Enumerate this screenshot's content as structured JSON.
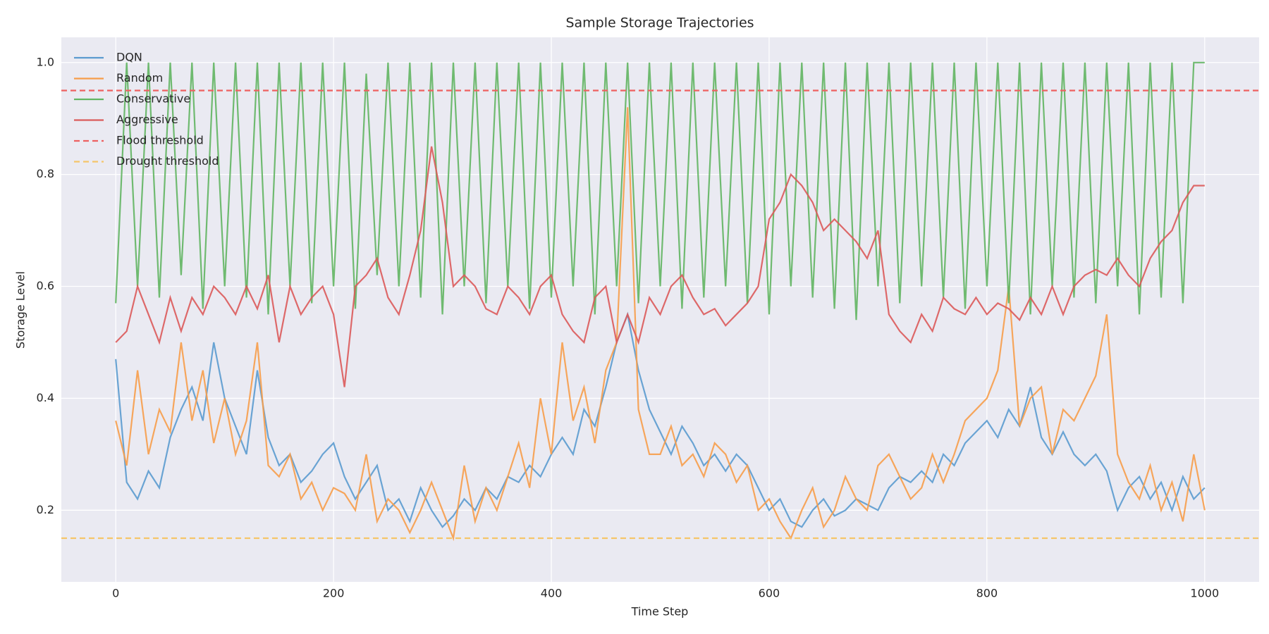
{
  "chart_data": {
    "type": "line",
    "title": "Sample Storage Trajectories",
    "x_label": "Time Step",
    "y_label": "Storage Level",
    "x": [
      0,
      10,
      20,
      30,
      40,
      50,
      60,
      70,
      80,
      90,
      100,
      110,
      120,
      130,
      140,
      150,
      160,
      170,
      180,
      190,
      200,
      210,
      220,
      230,
      240,
      250,
      260,
      270,
      280,
      290,
      300,
      310,
      320,
      330,
      340,
      350,
      360,
      370,
      380,
      390,
      400,
      410,
      420,
      430,
      440,
      450,
      460,
      470,
      480,
      490,
      500,
      510,
      520,
      530,
      540,
      550,
      560,
      570,
      580,
      590,
      600,
      610,
      620,
      630,
      640,
      650,
      660,
      670,
      680,
      690,
      700,
      710,
      720,
      730,
      740,
      750,
      760,
      770,
      780,
      790,
      800,
      810,
      820,
      830,
      840,
      850,
      860,
      870,
      880,
      890,
      900,
      910,
      920,
      930,
      940,
      950,
      960,
      970,
      980,
      990,
      1000
    ],
    "series": [
      {
        "name": "DQN",
        "color": "#5b9bcf",
        "values": [
          0.47,
          0.25,
          0.22,
          0.27,
          0.24,
          0.33,
          0.38,
          0.42,
          0.36,
          0.5,
          0.4,
          0.35,
          0.3,
          0.45,
          0.33,
          0.28,
          0.3,
          0.25,
          0.27,
          0.3,
          0.32,
          0.26,
          0.22,
          0.25,
          0.28,
          0.2,
          0.22,
          0.18,
          0.24,
          0.2,
          0.17,
          0.19,
          0.22,
          0.2,
          0.24,
          0.22,
          0.26,
          0.25,
          0.28,
          0.26,
          0.3,
          0.33,
          0.3,
          0.38,
          0.35,
          0.42,
          0.5,
          0.55,
          0.45,
          0.38,
          0.34,
          0.3,
          0.35,
          0.32,
          0.28,
          0.3,
          0.27,
          0.3,
          0.28,
          0.24,
          0.2,
          0.22,
          0.18,
          0.17,
          0.2,
          0.22,
          0.19,
          0.2,
          0.22,
          0.21,
          0.2,
          0.24,
          0.26,
          0.25,
          0.27,
          0.25,
          0.3,
          0.28,
          0.32,
          0.34,
          0.36,
          0.33,
          0.38,
          0.35,
          0.42,
          0.33,
          0.3,
          0.34,
          0.3,
          0.28,
          0.3,
          0.27,
          0.2,
          0.24,
          0.26,
          0.22,
          0.25,
          0.2,
          0.26,
          0.22,
          0.24
        ]
      },
      {
        "name": "Random",
        "color": "#f79d4a",
        "values": [
          0.36,
          0.28,
          0.45,
          0.3,
          0.38,
          0.34,
          0.5,
          0.36,
          0.45,
          0.32,
          0.4,
          0.3,
          0.36,
          0.5,
          0.28,
          0.26,
          0.3,
          0.22,
          0.25,
          0.2,
          0.24,
          0.23,
          0.2,
          0.3,
          0.18,
          0.22,
          0.2,
          0.16,
          0.2,
          0.25,
          0.2,
          0.15,
          0.28,
          0.18,
          0.24,
          0.2,
          0.26,
          0.32,
          0.24,
          0.4,
          0.3,
          0.5,
          0.36,
          0.42,
          0.32,
          0.45,
          0.5,
          0.92,
          0.38,
          0.3,
          0.3,
          0.35,
          0.28,
          0.3,
          0.26,
          0.32,
          0.3,
          0.25,
          0.28,
          0.2,
          0.22,
          0.18,
          0.15,
          0.2,
          0.24,
          0.17,
          0.2,
          0.26,
          0.22,
          0.2,
          0.28,
          0.3,
          0.26,
          0.22,
          0.24,
          0.3,
          0.25,
          0.3,
          0.36,
          0.38,
          0.4,
          0.45,
          0.6,
          0.35,
          0.4,
          0.42,
          0.3,
          0.38,
          0.36,
          0.4,
          0.44,
          0.55,
          0.3,
          0.25,
          0.22,
          0.28,
          0.2,
          0.25,
          0.18,
          0.3,
          0.2
        ]
      },
      {
        "name": "Conservative",
        "color": "#62b562",
        "values": [
          0.57,
          1.0,
          0.6,
          1.0,
          0.58,
          1.0,
          0.62,
          1.0,
          0.56,
          1.0,
          0.6,
          1.0,
          0.58,
          1.0,
          0.55,
          1.0,
          0.6,
          1.0,
          0.57,
          1.0,
          0.6,
          1.0,
          0.56,
          0.98,
          0.62,
          1.0,
          0.6,
          1.0,
          0.58,
          1.0,
          0.55,
          1.0,
          0.6,
          1.0,
          0.57,
          1.0,
          0.6,
          1.0,
          0.56,
          1.0,
          0.58,
          1.0,
          0.6,
          1.0,
          0.55,
          1.0,
          0.6,
          1.0,
          0.57,
          1.0,
          0.6,
          1.0,
          0.56,
          1.0,
          0.58,
          1.0,
          0.6,
          1.0,
          0.57,
          1.0,
          0.55,
          1.0,
          0.6,
          1.0,
          0.58,
          1.0,
          0.56,
          1.0,
          0.54,
          1.0,
          0.6,
          1.0,
          0.57,
          1.0,
          0.6,
          1.0,
          0.58,
          1.0,
          0.56,
          1.0,
          0.6,
          1.0,
          0.57,
          1.0,
          0.55,
          1.0,
          0.6,
          1.0,
          0.58,
          1.0,
          0.57,
          1.0,
          0.6,
          1.0,
          0.55,
          1.0,
          0.58,
          1.0,
          0.57,
          1.0,
          1.0
        ]
      },
      {
        "name": "Aggressive",
        "color": "#db5a5a",
        "values": [
          0.5,
          0.52,
          0.6,
          0.55,
          0.5,
          0.58,
          0.52,
          0.58,
          0.55,
          0.6,
          0.58,
          0.55,
          0.6,
          0.56,
          0.62,
          0.5,
          0.6,
          0.55,
          0.58,
          0.6,
          0.55,
          0.42,
          0.6,
          0.62,
          0.65,
          0.58,
          0.55,
          0.62,
          0.7,
          0.85,
          0.75,
          0.6,
          0.62,
          0.6,
          0.56,
          0.55,
          0.6,
          0.58,
          0.55,
          0.6,
          0.62,
          0.55,
          0.52,
          0.5,
          0.58,
          0.6,
          0.5,
          0.55,
          0.5,
          0.58,
          0.55,
          0.6,
          0.62,
          0.58,
          0.55,
          0.56,
          0.53,
          0.55,
          0.57,
          0.6,
          0.72,
          0.75,
          0.8,
          0.78,
          0.75,
          0.7,
          0.72,
          0.7,
          0.68,
          0.65,
          0.7,
          0.55,
          0.52,
          0.5,
          0.55,
          0.52,
          0.58,
          0.56,
          0.55,
          0.58,
          0.55,
          0.57,
          0.56,
          0.54,
          0.58,
          0.55,
          0.6,
          0.55,
          0.6,
          0.62,
          0.63,
          0.62,
          0.65,
          0.62,
          0.6,
          0.65,
          0.68,
          0.7,
          0.75,
          0.78,
          0.78
        ]
      }
    ],
    "thresholds": [
      {
        "name": "Flood threshold",
        "color": "#ee6060",
        "value": 0.95
      },
      {
        "name": "Drought threshold",
        "color": "#f5c56a",
        "value": 0.15
      }
    ],
    "xlim": [
      -50,
      1050
    ],
    "ylim": [
      0.072,
      1.045
    ],
    "xticks": [
      0,
      200,
      400,
      600,
      800,
      1000
    ],
    "yticks": [
      0.2,
      0.4,
      0.6,
      0.8,
      {
        "value": 1.0,
        "label": "1.0"
      }
    ],
    "grid": true,
    "legend": "upper left"
  }
}
